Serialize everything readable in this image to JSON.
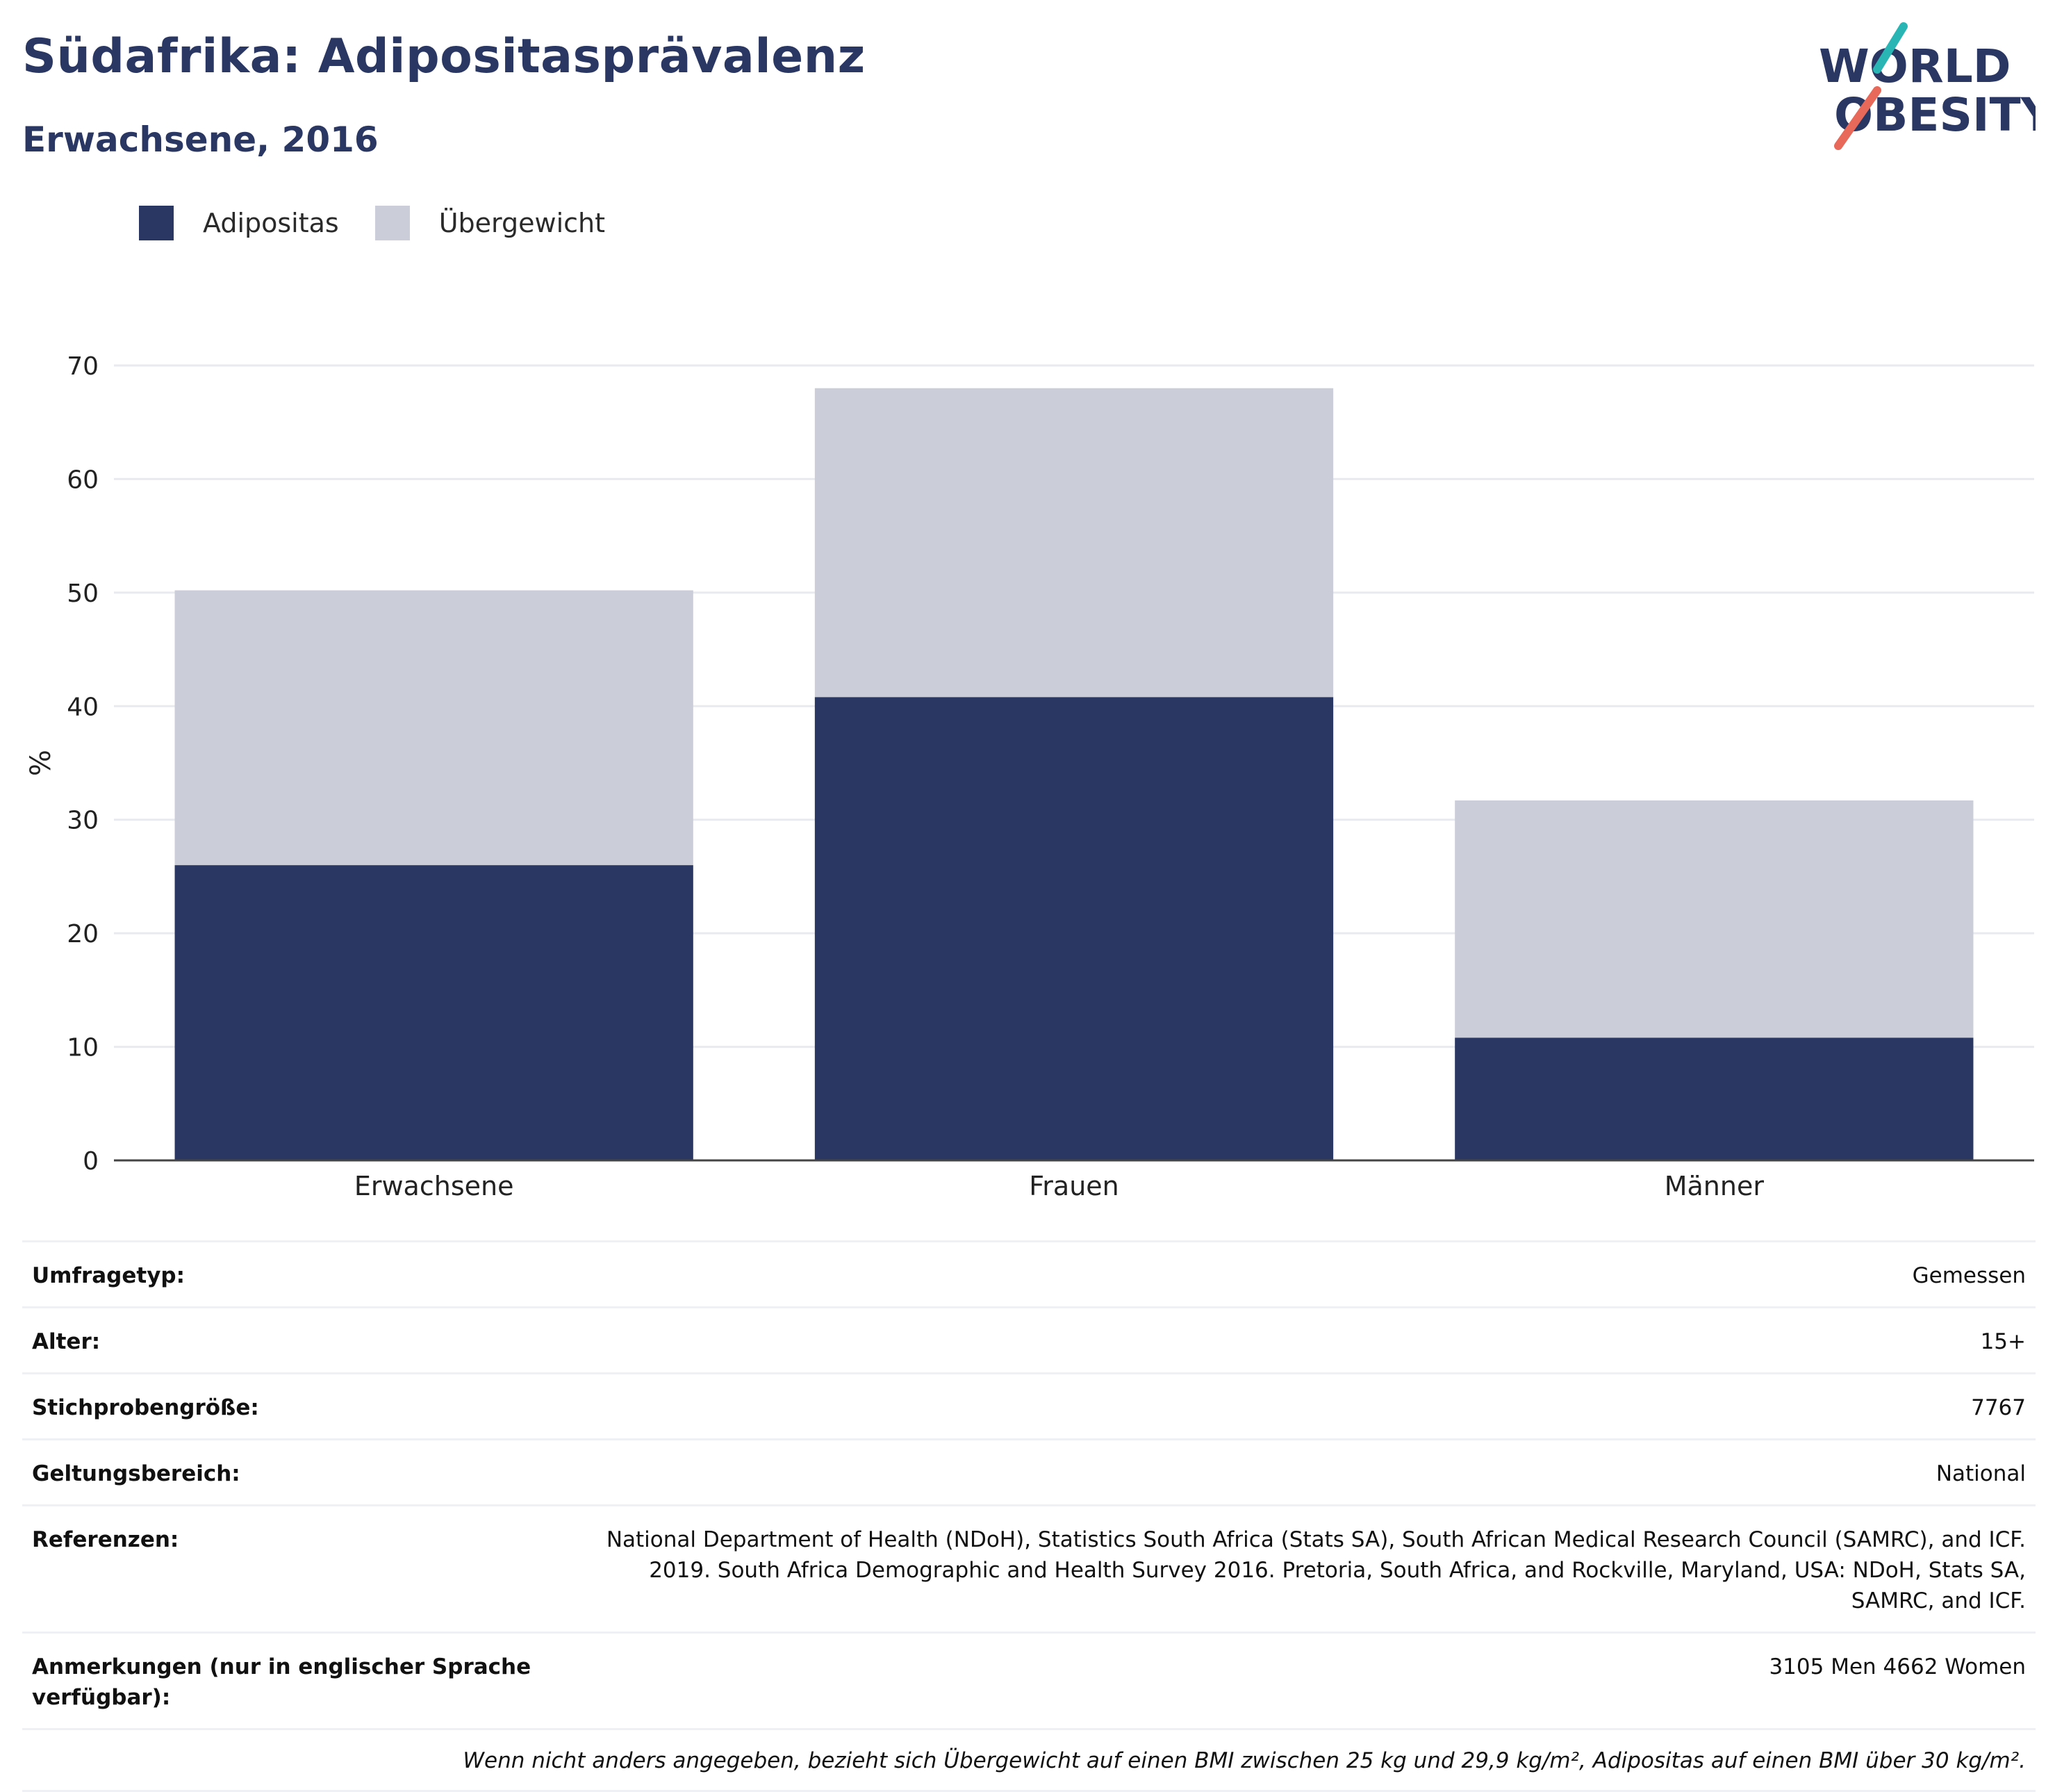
{
  "header": {
    "title": "Südafrika: Adipositasprävalenz",
    "subtitle": "Erwachsene, 2016",
    "logo_line1": "WORLD",
    "logo_line2": "OBESITY"
  },
  "colors": {
    "obesity": "#2a3763",
    "overweight": "#cbcdd8",
    "logo_teal": "#2ab5b5",
    "logo_coral": "#e8685a"
  },
  "chart_data": {
    "type": "bar",
    "stacked": true,
    "categories": [
      "Erwachsene",
      "Frauen",
      "Männer"
    ],
    "series": [
      {
        "name": "Adipositas",
        "values": [
          26.0,
          40.8,
          10.8
        ]
      },
      {
        "name": "Übergewicht",
        "values": [
          24.2,
          27.2,
          20.9
        ]
      }
    ],
    "totals": [
      50.2,
      68.0,
      31.7
    ],
    "ylabel": "%",
    "ylim": [
      0,
      70
    ],
    "yticks": [
      0,
      10,
      20,
      30,
      40,
      50,
      60,
      70
    ],
    "grid": true,
    "legend_position": "top-left"
  },
  "info": {
    "rows": [
      {
        "label": "Umfragetyp:",
        "value": "Gemessen"
      },
      {
        "label": "Alter:",
        "value": "15+"
      },
      {
        "label": "Stichprobengröße:",
        "value": "7767"
      },
      {
        "label": "Geltungsbereich:",
        "value": "National"
      },
      {
        "label": "Referenzen:",
        "value": "National Department of Health (NDoH), Statistics South Africa (Stats SA), South African Medical Research Council (SAMRC), and ICF. 2019. South Africa Demographic and Health Survey 2016. Pretoria, South Africa, and Rockville, Maryland, USA: NDoH, Stats SA, SAMRC, and ICF."
      },
      {
        "label": "Anmerkungen (nur in englischer Sprache verfügbar):",
        "value": "3105 Men 4662 Women"
      }
    ],
    "note": "Wenn nicht anders angegeben, bezieht sich Übergewicht auf einen BMI zwischen 25 kg und 29,9 kg/m², Adipositas auf einen BMI über 30 kg/m²."
  }
}
